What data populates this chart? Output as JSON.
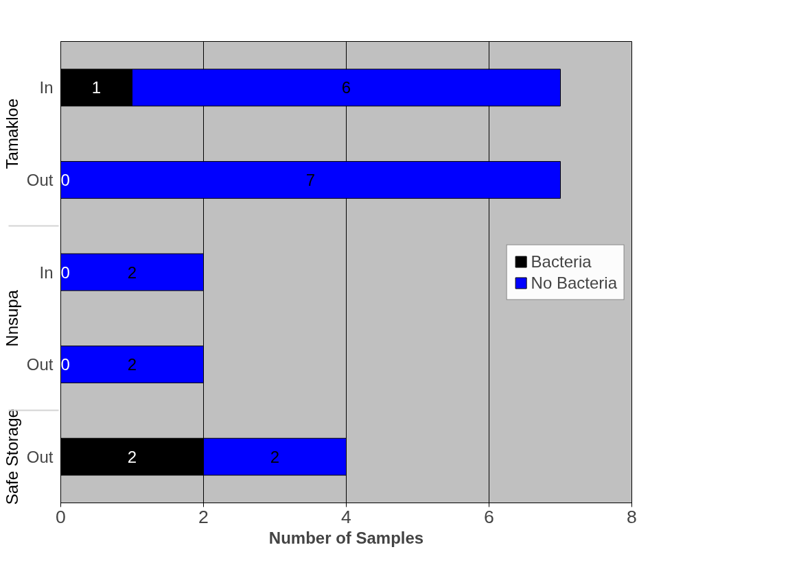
{
  "chart_data": {
    "type": "bar",
    "orientation": "horizontal",
    "stacked": true,
    "categories": [
      "In",
      "Out",
      "In",
      "Out",
      "Out"
    ],
    "series": [
      {
        "name": "Bacteria",
        "color": "#000000",
        "values": [
          1,
          0,
          0,
          0,
          2
        ]
      },
      {
        "name": "No Bacteria",
        "color": "#0000ff",
        "values": [
          6,
          7,
          2,
          2,
          2
        ]
      }
    ],
    "xlim": [
      0,
      8
    ],
    "xticks": [
      0,
      2,
      4,
      6,
      8
    ],
    "grid": "x",
    "legend": "right",
    "data_labels": true,
    "xlabel": "Number of Samples",
    "annotations": [
      "Tamakloe",
      "Nnsupa",
      "Safe Storage"
    ]
  }
}
